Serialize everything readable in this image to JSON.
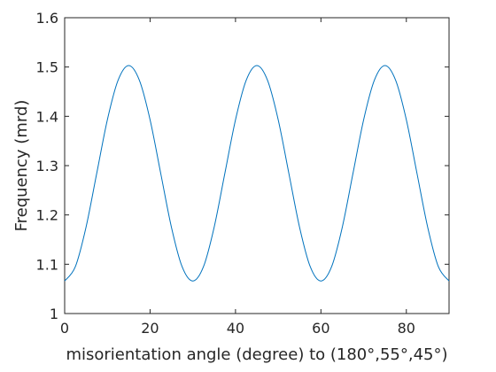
{
  "chart_data": {
    "type": "line",
    "title": "",
    "xlabel": "misorientation angle (degree) to (180°,55°,45°)",
    "ylabel": "Frequency (mrd)",
    "xlim": [
      0,
      90
    ],
    "ylim": [
      1,
      1.6
    ],
    "xticks": [
      0,
      20,
      40,
      60,
      80
    ],
    "xtick_labels": [
      "0",
      "20",
      "40",
      "60",
      "80"
    ],
    "yticks": [
      1,
      1.1,
      1.2,
      1.3,
      1.4,
      1.5,
      1.6
    ],
    "ytick_labels": [
      "1",
      "1.1",
      "1.2",
      "1.3",
      "1.4",
      "1.5",
      "1.6"
    ],
    "grid": false,
    "legend": "none",
    "line_color": "#0072bd",
    "series": [
      {
        "x": [
          0,
          2.5,
          5,
          7.5,
          10,
          12.5,
          15,
          17.5,
          20,
          22.5,
          25,
          27.5,
          30,
          32.5,
          35,
          37.5,
          40,
          42.5,
          45,
          47.5,
          50,
          52.5,
          55,
          57.5,
          60,
          62.5,
          65,
          67.5,
          70,
          72.5,
          75,
          77.5,
          80,
          82.5,
          85,
          87.5,
          90
        ],
        "y": [
          1.066,
          1.095,
          1.175,
          1.284,
          1.393,
          1.473,
          1.503,
          1.473,
          1.393,
          1.284,
          1.175,
          1.095,
          1.066,
          1.095,
          1.175,
          1.284,
          1.393,
          1.473,
          1.503,
          1.473,
          1.393,
          1.284,
          1.175,
          1.095,
          1.066,
          1.095,
          1.175,
          1.284,
          1.393,
          1.473,
          1.503,
          1.473,
          1.393,
          1.284,
          1.175,
          1.095,
          1.066
        ]
      }
    ]
  }
}
